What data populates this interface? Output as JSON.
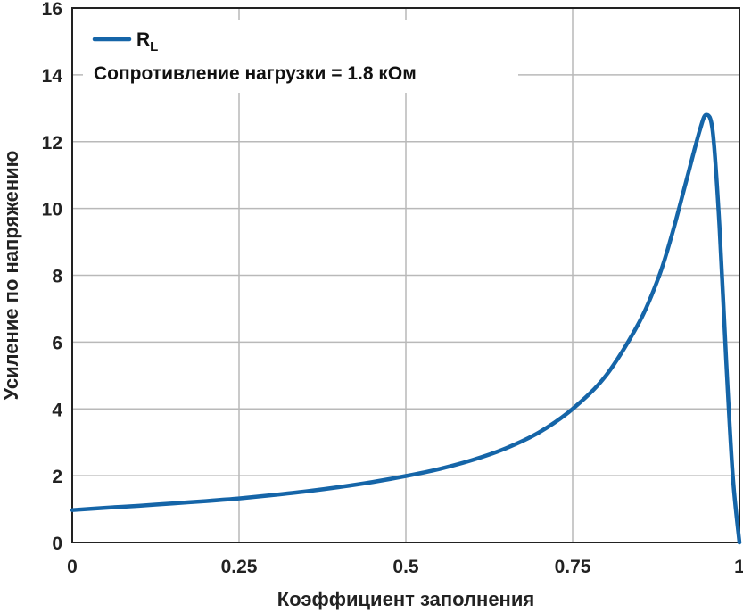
{
  "chart_data": {
    "type": "line",
    "xlabel": "Коэффициент заполнения",
    "ylabel": "Усиление по напряжению",
    "xlim": [
      0,
      1
    ],
    "ylim": [
      0,
      16
    ],
    "x_ticks": [
      0,
      0.25,
      0.5,
      0.75,
      1
    ],
    "x_tick_labels": [
      "0",
      "0.25",
      "0.5",
      "0.75",
      "1"
    ],
    "y_ticks": [
      0,
      2,
      4,
      6,
      8,
      10,
      12,
      14,
      16
    ],
    "y_tick_labels": [
      "0",
      "2",
      "4",
      "6",
      "8",
      "10",
      "12",
      "14",
      "16"
    ],
    "grid": true,
    "legend": {
      "position": "top-left",
      "series_label_main": "R",
      "series_label_sub": "L",
      "note": "Сопротивление нагрузки = 1.8 кОм"
    },
    "series": [
      {
        "name": "RL",
        "color": "#1565a8",
        "x": [
          0,
          0.05,
          0.1,
          0.15,
          0.2,
          0.25,
          0.3,
          0.35,
          0.4,
          0.45,
          0.5,
          0.55,
          0.6,
          0.65,
          0.7,
          0.75,
          0.8,
          0.85,
          0.88,
          0.9,
          0.92,
          0.94,
          0.95,
          0.96,
          0.97,
          0.98,
          0.99,
          1.0
        ],
        "y": [
          0.97,
          1.04,
          1.1,
          1.17,
          1.24,
          1.32,
          1.42,
          1.53,
          1.66,
          1.81,
          1.99,
          2.2,
          2.47,
          2.82,
          3.3,
          4.0,
          5.0,
          6.6,
          8.0,
          9.3,
          10.8,
          12.3,
          12.8,
          12.3,
          9.5,
          5.5,
          2.0,
          0
        ]
      }
    ]
  }
}
